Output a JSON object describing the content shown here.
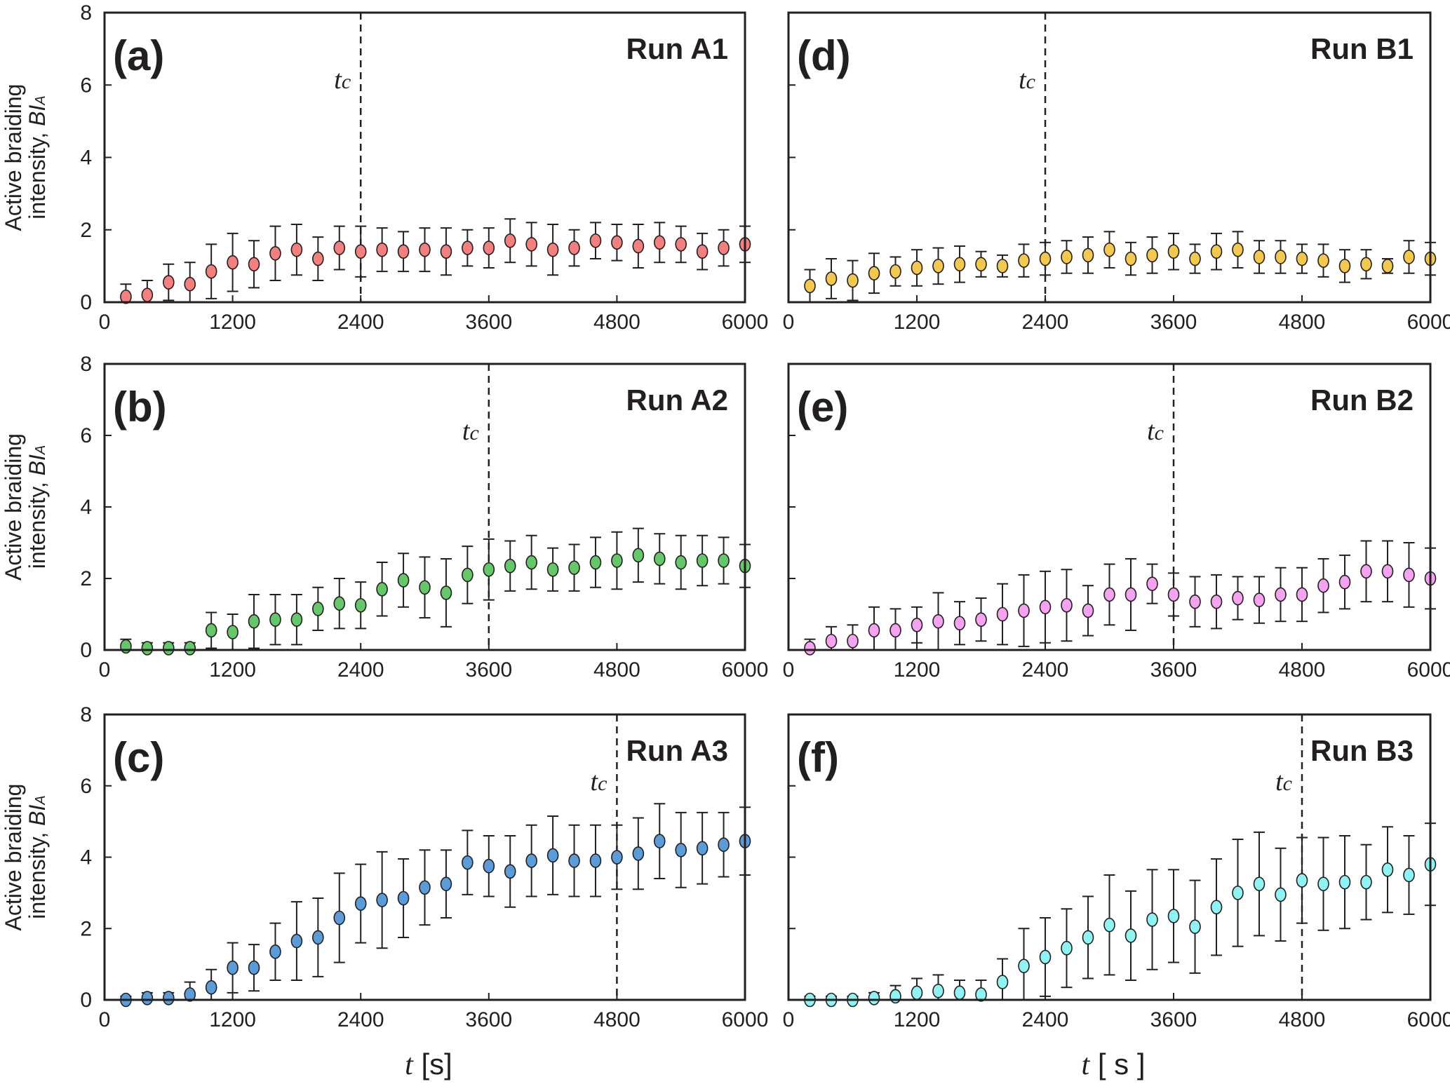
{
  "chart_data": {
    "type": "scatter",
    "shared": {
      "xlabel_left": "t [s]",
      "xlabel_right": "t [ s ]",
      "ylabel_lines": [
        "Active braiding",
        "intensity, BI_A"
      ],
      "xlim": [
        0,
        6000
      ],
      "ylim": [
        0,
        8
      ],
      "xticks": [
        0,
        1200,
        2400,
        3600,
        4800,
        6000
      ],
      "yticks": [
        0,
        2,
        4,
        6,
        8
      ],
      "x": [
        200,
        400,
        600,
        800,
        1000,
        1200,
        1400,
        1600,
        1800,
        2000,
        2200,
        2400,
        2600,
        2800,
        3000,
        3200,
        3400,
        3600,
        3800,
        4000,
        4200,
        4400,
        4600,
        4800,
        5000,
        5200,
        5400,
        5600,
        5800,
        6000
      ],
      "tc_label": "tc"
    },
    "panels": [
      {
        "label": "(a)",
        "run": "Run A1",
        "color": "#f47f7f",
        "tc": 2400,
        "values": [
          0.15,
          0.2,
          0.55,
          0.5,
          0.85,
          1.1,
          1.05,
          1.35,
          1.45,
          1.2,
          1.5,
          1.4,
          1.45,
          1.4,
          1.45,
          1.4,
          1.5,
          1.5,
          1.7,
          1.6,
          1.45,
          1.5,
          1.7,
          1.65,
          1.55,
          1.65,
          1.6,
          1.4,
          1.5,
          1.6
        ],
        "errors": [
          0.35,
          0.4,
          0.5,
          0.6,
          0.75,
          0.8,
          0.65,
          0.75,
          0.7,
          0.6,
          0.6,
          0.7,
          0.6,
          0.55,
          0.6,
          0.65,
          0.5,
          0.55,
          0.6,
          0.6,
          0.7,
          0.5,
          0.5,
          0.5,
          0.6,
          0.55,
          0.5,
          0.5,
          0.5,
          0.5
        ]
      },
      {
        "label": "(b)",
        "run": "Run A2",
        "color": "#66c66a",
        "tc": 3600,
        "values": [
          0.1,
          0.05,
          0.05,
          0.05,
          0.55,
          0.5,
          0.8,
          0.85,
          0.85,
          1.15,
          1.3,
          1.25,
          1.7,
          1.95,
          1.75,
          1.6,
          2.1,
          2.25,
          2.35,
          2.45,
          2.25,
          2.3,
          2.45,
          2.5,
          2.65,
          2.55,
          2.45,
          2.5,
          2.5,
          2.35
        ],
        "errors": [
          0.2,
          0.15,
          0.15,
          0.15,
          0.5,
          0.5,
          0.75,
          0.7,
          0.7,
          0.6,
          0.7,
          0.65,
          0.75,
          0.75,
          0.85,
          0.95,
          0.8,
          0.85,
          0.7,
          0.75,
          0.6,
          0.65,
          0.7,
          0.8,
          0.75,
          0.7,
          0.75,
          0.7,
          0.65,
          0.6
        ]
      },
      {
        "label": "(c)",
        "run": "Run A3",
        "color": "#5b9bd8",
        "tc": 4800,
        "values": [
          0.0,
          0.05,
          0.05,
          0.15,
          0.35,
          0.9,
          0.9,
          1.35,
          1.65,
          1.75,
          2.3,
          2.7,
          2.8,
          2.85,
          3.15,
          3.25,
          3.85,
          3.75,
          3.6,
          3.9,
          4.05,
          3.9,
          3.9,
          4.0,
          4.1,
          4.45,
          4.2,
          4.25,
          4.35,
          4.45
        ],
        "errors": [
          0.1,
          0.15,
          0.15,
          0.35,
          0.5,
          0.7,
          0.65,
          0.8,
          1.1,
          1.1,
          1.25,
          1.1,
          1.35,
          1.1,
          1.05,
          0.95,
          0.9,
          0.85,
          1.0,
          1.0,
          1.1,
          1.0,
          1.0,
          0.9,
          1.0,
          1.05,
          1.05,
          1.0,
          0.9,
          0.95
        ]
      },
      {
        "label": "(d)",
        "run": "Run B1",
        "color": "#f3c850",
        "tc": 2400,
        "values": [
          0.45,
          0.65,
          0.6,
          0.8,
          0.85,
          0.95,
          1.0,
          1.05,
          1.05,
          1.0,
          1.15,
          1.2,
          1.25,
          1.3,
          1.45,
          1.2,
          1.3,
          1.4,
          1.2,
          1.4,
          1.45,
          1.25,
          1.25,
          1.2,
          1.15,
          1.0,
          1.05,
          1.0,
          1.25,
          1.2
        ],
        "errors": [
          0.45,
          0.55,
          0.55,
          0.55,
          0.4,
          0.5,
          0.5,
          0.5,
          0.35,
          0.3,
          0.45,
          0.45,
          0.45,
          0.5,
          0.5,
          0.45,
          0.5,
          0.5,
          0.4,
          0.5,
          0.5,
          0.45,
          0.45,
          0.4,
          0.45,
          0.45,
          0.4,
          0.2,
          0.45,
          0.45
        ]
      },
      {
        "label": "(e)",
        "run": "Run B2",
        "color": "#f5a3f0",
        "tc": 3600,
        "values": [
          0.05,
          0.25,
          0.25,
          0.55,
          0.55,
          0.7,
          0.8,
          0.75,
          0.85,
          1.0,
          1.1,
          1.2,
          1.25,
          1.1,
          1.55,
          1.55,
          1.85,
          1.55,
          1.35,
          1.35,
          1.45,
          1.4,
          1.55,
          1.55,
          1.8,
          1.9,
          2.2,
          2.2,
          2.1,
          2.0
        ],
        "errors": [
          0.25,
          0.4,
          0.45,
          0.65,
          0.6,
          0.5,
          0.8,
          0.6,
          0.6,
          0.85,
          1.0,
          1.0,
          1.0,
          0.7,
          0.85,
          1.0,
          0.55,
          0.6,
          0.7,
          0.75,
          0.6,
          0.65,
          0.75,
          0.75,
          0.75,
          0.75,
          0.85,
          0.85,
          0.9,
          0.85
        ]
      },
      {
        "label": "(f)",
        "run": "Run B3",
        "color": "#8ff3f3",
        "tc": 4800,
        "values": [
          0.0,
          0.0,
          0.0,
          0.05,
          0.1,
          0.2,
          0.25,
          0.2,
          0.15,
          0.5,
          0.95,
          1.2,
          1.45,
          1.75,
          2.1,
          1.8,
          2.25,
          2.35,
          2.05,
          2.6,
          3.0,
          3.25,
          2.95,
          3.35,
          3.25,
          3.3,
          3.3,
          3.65,
          3.5,
          3.8
        ],
        "errors": [
          0.1,
          0.1,
          0.1,
          0.15,
          0.3,
          0.4,
          0.45,
          0.35,
          0.4,
          0.65,
          1.05,
          1.1,
          1.1,
          1.15,
          1.4,
          1.25,
          1.4,
          1.3,
          1.3,
          1.35,
          1.5,
          1.45,
          1.3,
          1.2,
          1.3,
          1.3,
          1.05,
          1.2,
          1.1,
          1.15
        ]
      }
    ]
  }
}
